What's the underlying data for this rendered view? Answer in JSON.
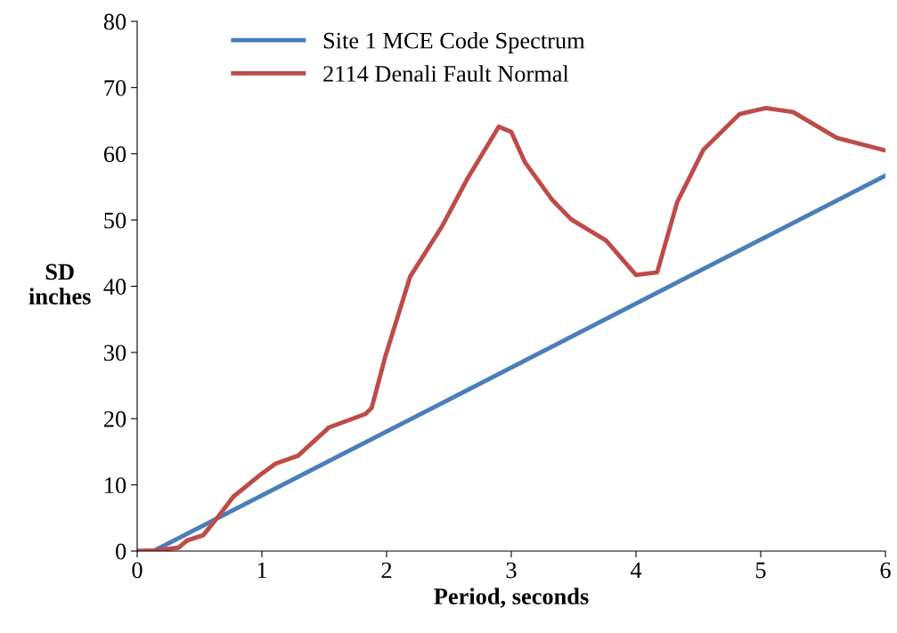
{
  "chart_data": {
    "type": "line",
    "xlabel": "Period, seconds",
    "ylabel": "SD\ninches",
    "xlim": [
      0,
      6
    ],
    "ylim": [
      0,
      80
    ],
    "xticks": [
      0,
      1,
      2,
      3,
      4,
      5,
      6
    ],
    "yticks": [
      0,
      10,
      20,
      30,
      40,
      50,
      60,
      70,
      80
    ],
    "grid": false,
    "legend": "top left",
    "marker": "none",
    "line_style": "solid",
    "series": [
      {
        "name": "Site 1 MCE Code Spectrum",
        "color": "#4a7ebb",
        "x": [
          0,
          0.13,
          6
        ],
        "values": [
          0,
          0,
          56.7
        ]
      },
      {
        "name": "2114 Denali Fault Normal",
        "color": "#be4b48",
        "x": [
          0,
          0.15,
          0.33,
          0.4,
          0.53,
          0.65,
          0.77,
          1.0,
          1.11,
          1.29,
          1.54,
          1.83,
          1.88,
          1.99,
          2.19,
          2.44,
          2.65,
          2.9,
          3.0,
          3.11,
          3.33,
          3.48,
          3.76,
          4.0,
          4.17,
          4.33,
          4.54,
          4.83,
          5.04,
          5.26,
          5.61,
          6.0
        ],
        "values": [
          0,
          0.1,
          0.5,
          1.6,
          2.4,
          5.2,
          8.2,
          11.7,
          13.2,
          14.4,
          18.7,
          20.7,
          21.6,
          29.4,
          41.5,
          48.9,
          56.3,
          64.1,
          63.3,
          58.7,
          53,
          50.1,
          46.9,
          41.7,
          42.1,
          52.7,
          60.6,
          66,
          66.9,
          66.3,
          62.4,
          60.5
        ]
      }
    ]
  }
}
